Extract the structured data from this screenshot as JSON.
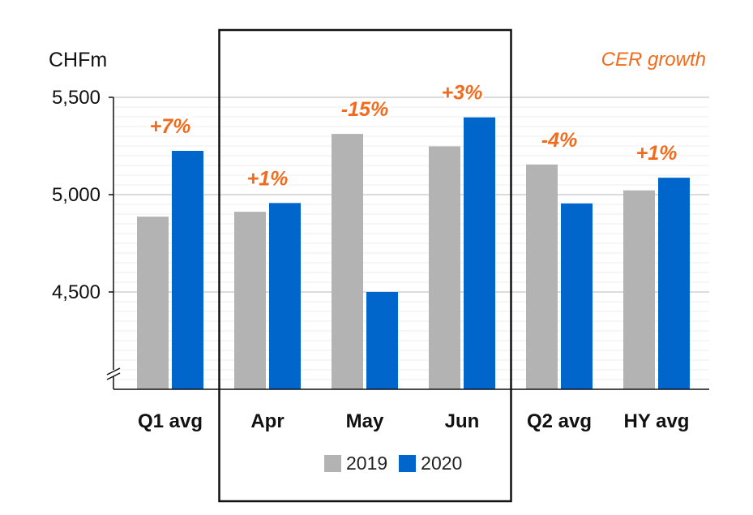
{
  "chart_data": {
    "type": "bar",
    "unit": "CHFm",
    "annotation_title": "CER growth",
    "categories": [
      "Q1 avg",
      "Apr",
      "May",
      "Jun",
      "Q2 avg",
      "HY avg"
    ],
    "series": [
      {
        "name": "2019",
        "color": "#b3b3b3",
        "values": [
          4887,
          4912,
          5312,
          5248,
          5155,
          5022
        ]
      },
      {
        "name": "2020",
        "color": "#0066cc",
        "values": [
          5225,
          4957,
          4500,
          5397,
          4955,
          5087
        ]
      }
    ],
    "growth_labels": [
      "+7%",
      "+1%",
      "-15%",
      "+3%",
      "-4%",
      "+1%"
    ],
    "y_ticks": [
      4500,
      5000,
      5500
    ],
    "y_tick_labels": [
      "4,500",
      "5,000",
      "5,500"
    ],
    "ylim": [
      4000,
      5500
    ],
    "axis_break": true,
    "highlighted_categories": [
      "Apr",
      "May",
      "Jun"
    ],
    "label_color": "#f26b1d",
    "grid": true,
    "legend_position": "bottom-center"
  }
}
